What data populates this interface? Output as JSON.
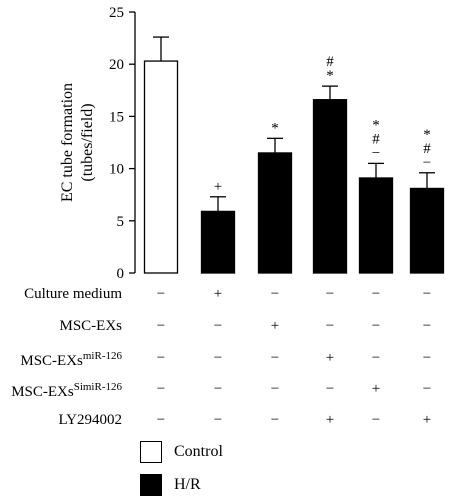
{
  "chart_data": {
    "type": "bar",
    "ylabel": "EC tube formation\n(tubes/field)",
    "ylim": [
      0,
      25
    ],
    "yticks": [
      0,
      5,
      10,
      15,
      20,
      25
    ],
    "bars": [
      {
        "value": 20.3,
        "error": 2.3,
        "group": "Control",
        "marks": []
      },
      {
        "value": 5.9,
        "error": 1.4,
        "group": "H/R",
        "marks": [
          "+"
        ]
      },
      {
        "value": 11.5,
        "error": 1.4,
        "group": "H/R",
        "marks": [
          "*"
        ]
      },
      {
        "value": 16.6,
        "error": 1.3,
        "group": "H/R",
        "marks": [
          "*",
          "#"
        ]
      },
      {
        "value": 9.1,
        "error": 1.4,
        "group": "H/R",
        "marks": [
          "−",
          "#",
          "*"
        ]
      },
      {
        "value": 8.1,
        "error": 1.5,
        "group": "H/R",
        "marks": [
          "−",
          "#",
          "*"
        ]
      }
    ],
    "conditions": [
      {
        "label": "Culture medium",
        "sup": "",
        "values": [
          "−",
          "+",
          "−",
          "−",
          "−",
          "−"
        ]
      },
      {
        "label": "MSC-EXs",
        "sup": "",
        "values": [
          "−",
          "−",
          "+",
          "−",
          "−",
          "−"
        ]
      },
      {
        "label": "MSC-EXs",
        "sup": "miR-126",
        "values": [
          "−",
          "−",
          "−",
          "+",
          "−",
          "−"
        ]
      },
      {
        "label": "MSC-EXs",
        "sup": "SimiR-126",
        "values": [
          "−",
          "−",
          "−",
          "−",
          "+",
          "−"
        ]
      },
      {
        "label": "LY294002",
        "sup": "",
        "values": [
          "−",
          "−",
          "−",
          "+",
          "−",
          "+"
        ]
      }
    ],
    "legend": [
      {
        "label": "Control",
        "fill": "#ffffff"
      },
      {
        "label": "H/R",
        "fill": "#000000"
      }
    ]
  }
}
